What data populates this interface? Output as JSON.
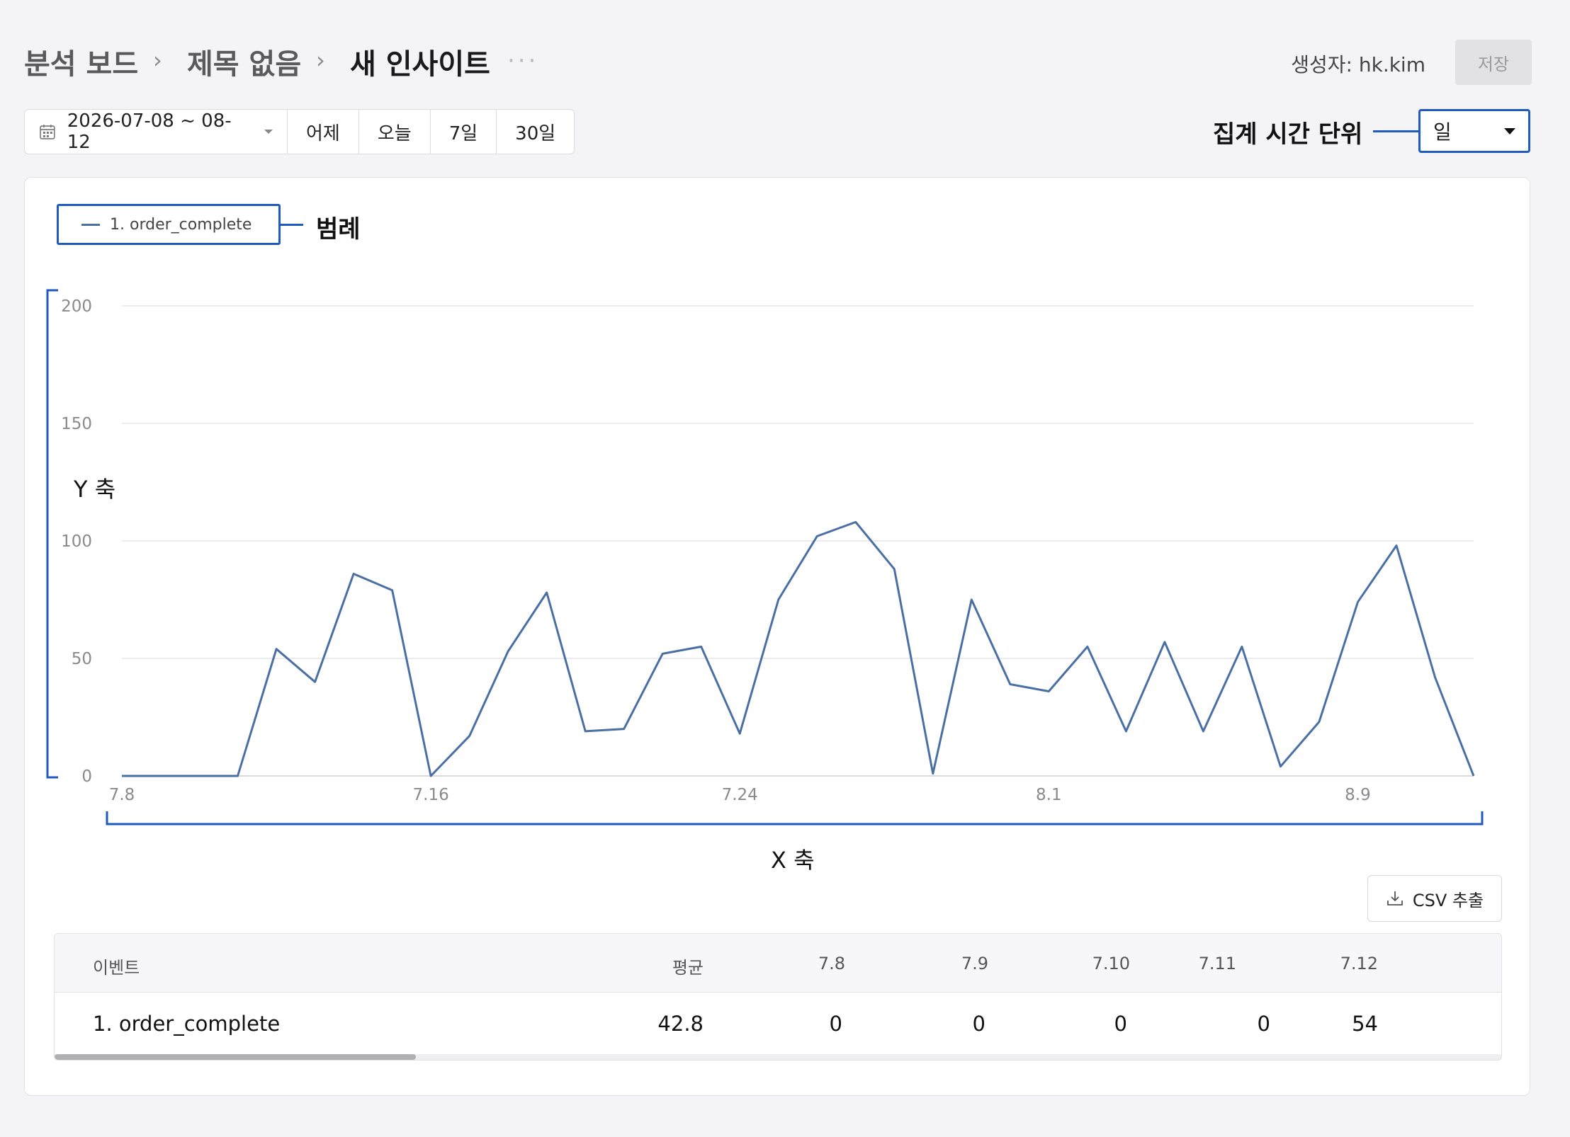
{
  "breadcrumb": [
    "분석 보드",
    "제목 없음",
    "새 인사이트"
  ],
  "header": {
    "creator_label": "생성자:",
    "creator": "hk.kim",
    "save_label": "저장"
  },
  "date_range": {
    "value": "2026-07-08 ~ 08-12",
    "quick_buttons": [
      "어제",
      "오늘",
      "7일",
      "30일"
    ]
  },
  "aggregation": {
    "annotation": "집계 시간 단위",
    "value": "일"
  },
  "annotations": {
    "legend": "범례",
    "y_axis": "Y 축",
    "x_axis": "X 축"
  },
  "legend": {
    "items": [
      "1. order_complete"
    ]
  },
  "colors": {
    "series": "#4a6fa5",
    "annotation": "#1f5bbf"
  },
  "chart_data": {
    "type": "line",
    "title": "",
    "xlabel": "",
    "ylabel": "",
    "ylim": [
      0,
      200
    ],
    "yticks": [
      0,
      50,
      100,
      150,
      200
    ],
    "xtick_labels": [
      "7.8",
      "7.16",
      "7.24",
      "8.1",
      "8.9"
    ],
    "grid": true,
    "legend_position": "top-left",
    "x": [
      "7.8",
      "7.9",
      "7.10",
      "7.11",
      "7.12",
      "7.13",
      "7.14",
      "7.15",
      "7.16",
      "7.17",
      "7.18",
      "7.19",
      "7.20",
      "7.21",
      "7.22",
      "7.23",
      "7.24",
      "7.25",
      "7.26",
      "7.27",
      "7.28",
      "7.29",
      "7.30",
      "7.31",
      "8.1",
      "8.2",
      "8.3",
      "8.4",
      "8.5",
      "8.6",
      "8.7",
      "8.8",
      "8.9",
      "8.10",
      "8.11",
      "8.12"
    ],
    "series": [
      {
        "name": "1. order_complete",
        "values": [
          0,
          0,
          0,
          0,
          54,
          40,
          86,
          79,
          0,
          17,
          53,
          78,
          19,
          20,
          52,
          55,
          18,
          75,
          102,
          108,
          88,
          1,
          75,
          39,
          36,
          55,
          19,
          57,
          19,
          55,
          4,
          23,
          74,
          98,
          42,
          0
        ]
      }
    ]
  },
  "csv_button": "CSV 추출",
  "table": {
    "columns": [
      "이벤트",
      "평균",
      "7.8",
      "7.9",
      "7.10",
      "7.11",
      "7.12"
    ],
    "rows": [
      [
        "1. order_complete",
        "42.8",
        "0",
        "0",
        "0",
        "0",
        "54"
      ]
    ]
  }
}
